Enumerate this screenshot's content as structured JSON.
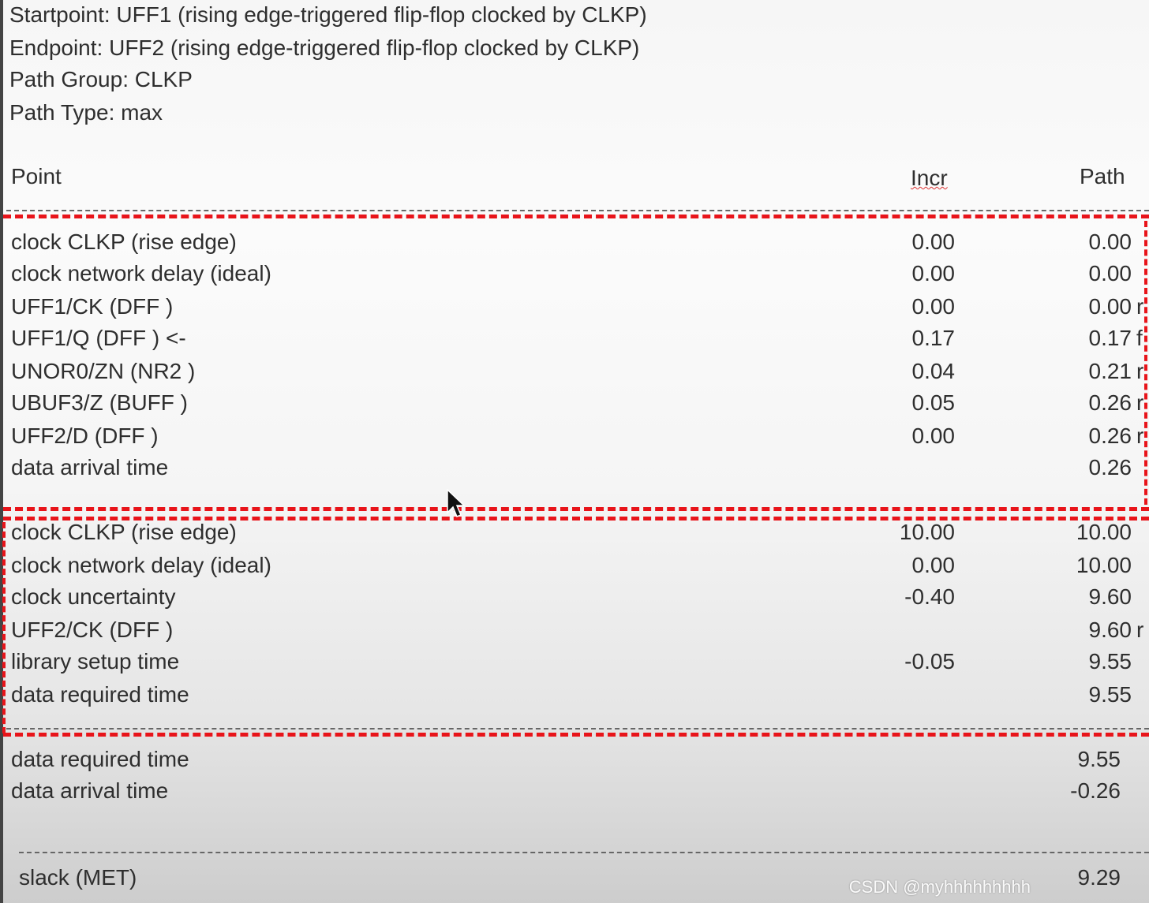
{
  "header": {
    "startpoint": "Startpoint: UFF1 (rising edge-triggered flip-flop clocked by CLKP)",
    "endpoint": "Endpoint: UFF2 (rising edge-triggered flip-flop clocked by CLKP)",
    "path_group": "Path Group: CLKP",
    "path_type": "Path Type: max"
  },
  "columns": {
    "point": "Point",
    "incr": "Incr",
    "path": "Path"
  },
  "arrival_rows": [
    {
      "point": "clock CLKP (rise edge)",
      "incr": "0.00",
      "path": "0.00",
      "edge": ""
    },
    {
      "point": "clock network delay (ideal)",
      "incr": "0.00",
      "path": "0.00",
      "edge": ""
    },
    {
      "point": "UFF1/CK (DFF )",
      "incr": "0.00",
      "path": "0.00",
      "edge": "r"
    },
    {
      "point": "UFF1/Q (DFF ) <-",
      "incr": "0.17",
      "path": "0.17",
      "edge": "f"
    },
    {
      "point": "UNOR0/ZN (NR2 )",
      "incr": "0.04",
      "path": "0.21",
      "edge": "r"
    },
    {
      "point": "UBUF3/Z (BUFF )",
      "incr": "0.05",
      "path": "0.26",
      "edge": "r"
    },
    {
      "point": "UFF2/D (DFF )",
      "incr": "0.00",
      "path": "0.26",
      "edge": "r"
    },
    {
      "point": "data arrival time",
      "incr": "",
      "path": "0.26",
      "edge": ""
    }
  ],
  "required_rows": [
    {
      "point": "clock CLKP (rise edge)",
      "incr": "10.00",
      "path": "10.00",
      "edge": ""
    },
    {
      "point": "clock network delay (ideal)",
      "incr": "0.00",
      "path": "10.00",
      "edge": ""
    },
    {
      "point": "clock uncertainty",
      "incr": "-0.40",
      "path": "9.60",
      "edge": ""
    },
    {
      "point": "UFF2/CK (DFF )",
      "incr": "",
      "path": "9.60",
      "edge": "r"
    },
    {
      "point": "library setup time",
      "incr": "-0.05",
      "path": "9.55",
      "edge": ""
    },
    {
      "point": "data required time",
      "incr": "",
      "path": "9.55",
      "edge": ""
    }
  ],
  "summary_rows": [
    {
      "point": "data required time",
      "path": "9.55"
    },
    {
      "point": "data arrival time",
      "path": "-0.26"
    }
  ],
  "slack": {
    "label": "slack (MET)",
    "value": "9.29"
  },
  "watermark": "CSDN @myhhhhhhhhh",
  "colors": {
    "highlight": "#e8141a",
    "text": "#2e2e2e"
  }
}
